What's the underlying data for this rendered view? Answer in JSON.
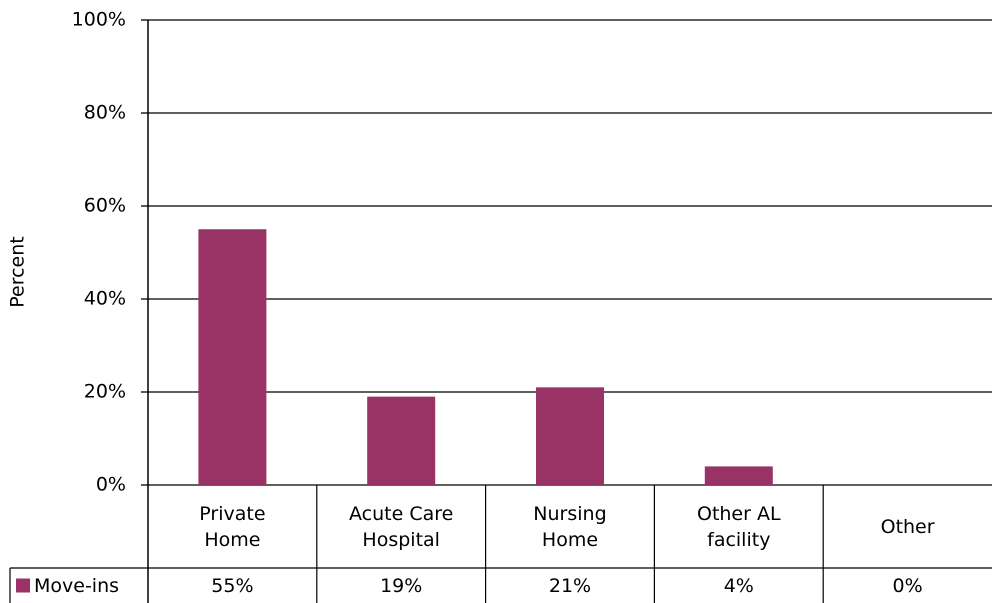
{
  "chart_data": {
    "type": "bar",
    "y_label": "Percent",
    "categories": [
      "Private Home",
      "Acute Care Hospital",
      "Nursing Home",
      "Other AL facility",
      "Other"
    ],
    "series": [
      {
        "name": "Move-ins",
        "color": "#993366",
        "values": [
          55,
          19,
          21,
          4,
          0
        ],
        "value_labels": [
          "55%",
          "19%",
          "21%",
          "4%",
          "0%"
        ]
      }
    ],
    "ylim": [
      0,
      100
    ],
    "yticks": [
      {
        "value": 0,
        "label": "0%"
      },
      {
        "value": 20,
        "label": "20%"
      },
      {
        "value": 40,
        "label": "40%"
      },
      {
        "value": 60,
        "label": "60%"
      },
      {
        "value": 80,
        "label": "80%"
      },
      {
        "value": 100,
        "label": "100%"
      }
    ],
    "grid": true
  }
}
